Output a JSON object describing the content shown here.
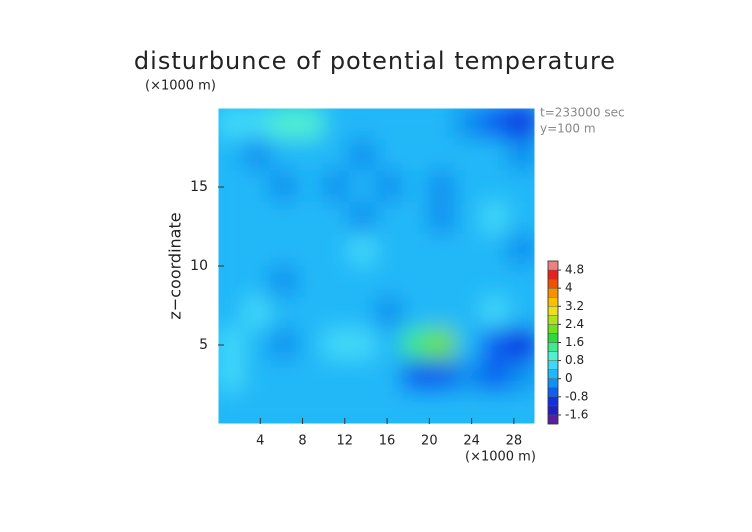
{
  "chart_data": {
    "type": "heatmap",
    "title": "disturbunce of potential temperature",
    "y_unit": "(×1000 m)",
    "x_unit": "(×1000 m)",
    "ylabel": "z−coordinate",
    "annotations": [
      "t=233000 sec",
      "y=100 m"
    ],
    "xlim": [
      0,
      30
    ],
    "ylim": [
      0,
      20
    ],
    "xticks": [
      4,
      8,
      12,
      16,
      20,
      24,
      28
    ],
    "yticks": [
      5,
      10,
      15
    ],
    "x": [
      1.25,
      3.75,
      6.25,
      8.75,
      11.25,
      13.75,
      16.25,
      18.75,
      21.25,
      23.75,
      26.25,
      28.75
    ],
    "y": [
      19,
      17,
      15,
      13,
      11,
      9,
      7,
      5,
      3,
      1
    ],
    "z": [
      [
        0.4,
        0.6,
        1.0,
        0.8,
        0.2,
        0,
        0.2,
        0.2,
        0,
        -0.4,
        -0.8,
        -1.0
      ],
      [
        0.2,
        -0.2,
        0.2,
        0,
        0.2,
        -0.2,
        0.2,
        0,
        0,
        0.2,
        0.2,
        -0.4
      ],
      [
        0,
        0.2,
        -0.2,
        0.2,
        -0.2,
        0,
        -0.2,
        0,
        -0.4,
        0.2,
        0.2,
        0
      ],
      [
        0.2,
        0,
        0.2,
        0,
        0.2,
        -0.2,
        0.2,
        0,
        -0.2,
        0.2,
        0.4,
        0
      ],
      [
        0,
        0.2,
        0,
        0.2,
        0,
        0.4,
        0,
        0.2,
        0,
        0,
        0,
        -0.2
      ],
      [
        0.2,
        0,
        -0.2,
        0.2,
        0.2,
        0,
        0.2,
        0,
        0.2,
        0.2,
        0,
        0
      ],
      [
        0,
        0.4,
        0.2,
        0,
        0.2,
        0.2,
        -0.2,
        0,
        0.2,
        0.2,
        0.4,
        0
      ],
      [
        0.4,
        0.2,
        -0.4,
        0.2,
        0.6,
        0.4,
        0.2,
        1.2,
        2.0,
        0,
        -0.8,
        -1.2
      ],
      [
        0.6,
        0.2,
        0.2,
        0,
        0.2,
        0.2,
        0,
        -0.6,
        -0.8,
        -0.4,
        -0.6,
        -0.4
      ],
      [
        0.2,
        0,
        0.2,
        0.2,
        0,
        0.2,
        0.2,
        0,
        0.2,
        0,
        0.2,
        0
      ]
    ],
    "colorbar": {
      "lim": [
        -2.0,
        5.2
      ],
      "step": 0.4,
      "ticks": [
        -1.6,
        -0.8,
        0,
        0.8,
        1.6,
        2.4,
        3.2,
        4,
        4.8
      ],
      "colors": [
        "#5a1ea0",
        "#2020c0",
        "#1030e0",
        "#1060f0",
        "#1090f0",
        "#20b8f8",
        "#40d8f8",
        "#50f0d0",
        "#40e890",
        "#30d840",
        "#70e020",
        "#b0e020",
        "#e8e020",
        "#f8c000",
        "#f89000",
        "#f05000",
        "#e82020",
        "#f08080"
      ]
    }
  }
}
